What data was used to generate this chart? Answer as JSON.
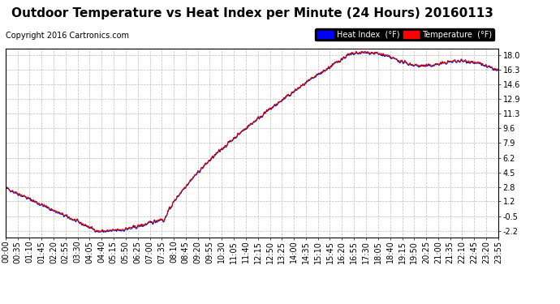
{
  "title": "Outdoor Temperature vs Heat Index per Minute (24 Hours) 20160113",
  "copyright": "Copyright 2016 Cartronics.com",
  "yticks": [
    -2.2,
    -0.5,
    1.2,
    2.8,
    4.5,
    6.2,
    7.9,
    9.6,
    11.3,
    12.9,
    14.6,
    16.3,
    18.0
  ],
  "ylim": [
    -2.9,
    18.7
  ],
  "legend_labels": [
    "Heat Index  (°F)",
    "Temperature  (°F)"
  ],
  "background_color": "#ffffff",
  "grid_color": "#bbbbbb",
  "line_color_temp": "#cc0000",
  "line_color_heat": "#0000cc",
  "title_fontsize": 11,
  "copyright_fontsize": 7,
  "tick_fontsize": 7,
  "n_points": 1440,
  "xtick_labels": [
    "00:00",
    "00:35",
    "01:10",
    "01:45",
    "02:20",
    "02:55",
    "03:30",
    "04:05",
    "04:40",
    "05:15",
    "05:50",
    "06:25",
    "07:00",
    "07:35",
    "08:10",
    "08:45",
    "09:20",
    "09:55",
    "10:30",
    "11:05",
    "11:40",
    "12:15",
    "12:50",
    "13:25",
    "14:00",
    "14:35",
    "15:10",
    "15:45",
    "16:20",
    "16:55",
    "17:30",
    "18:05",
    "18:40",
    "19:15",
    "19:50",
    "20:25",
    "21:00",
    "21:35",
    "22:10",
    "22:45",
    "23:20",
    "23:55"
  ]
}
